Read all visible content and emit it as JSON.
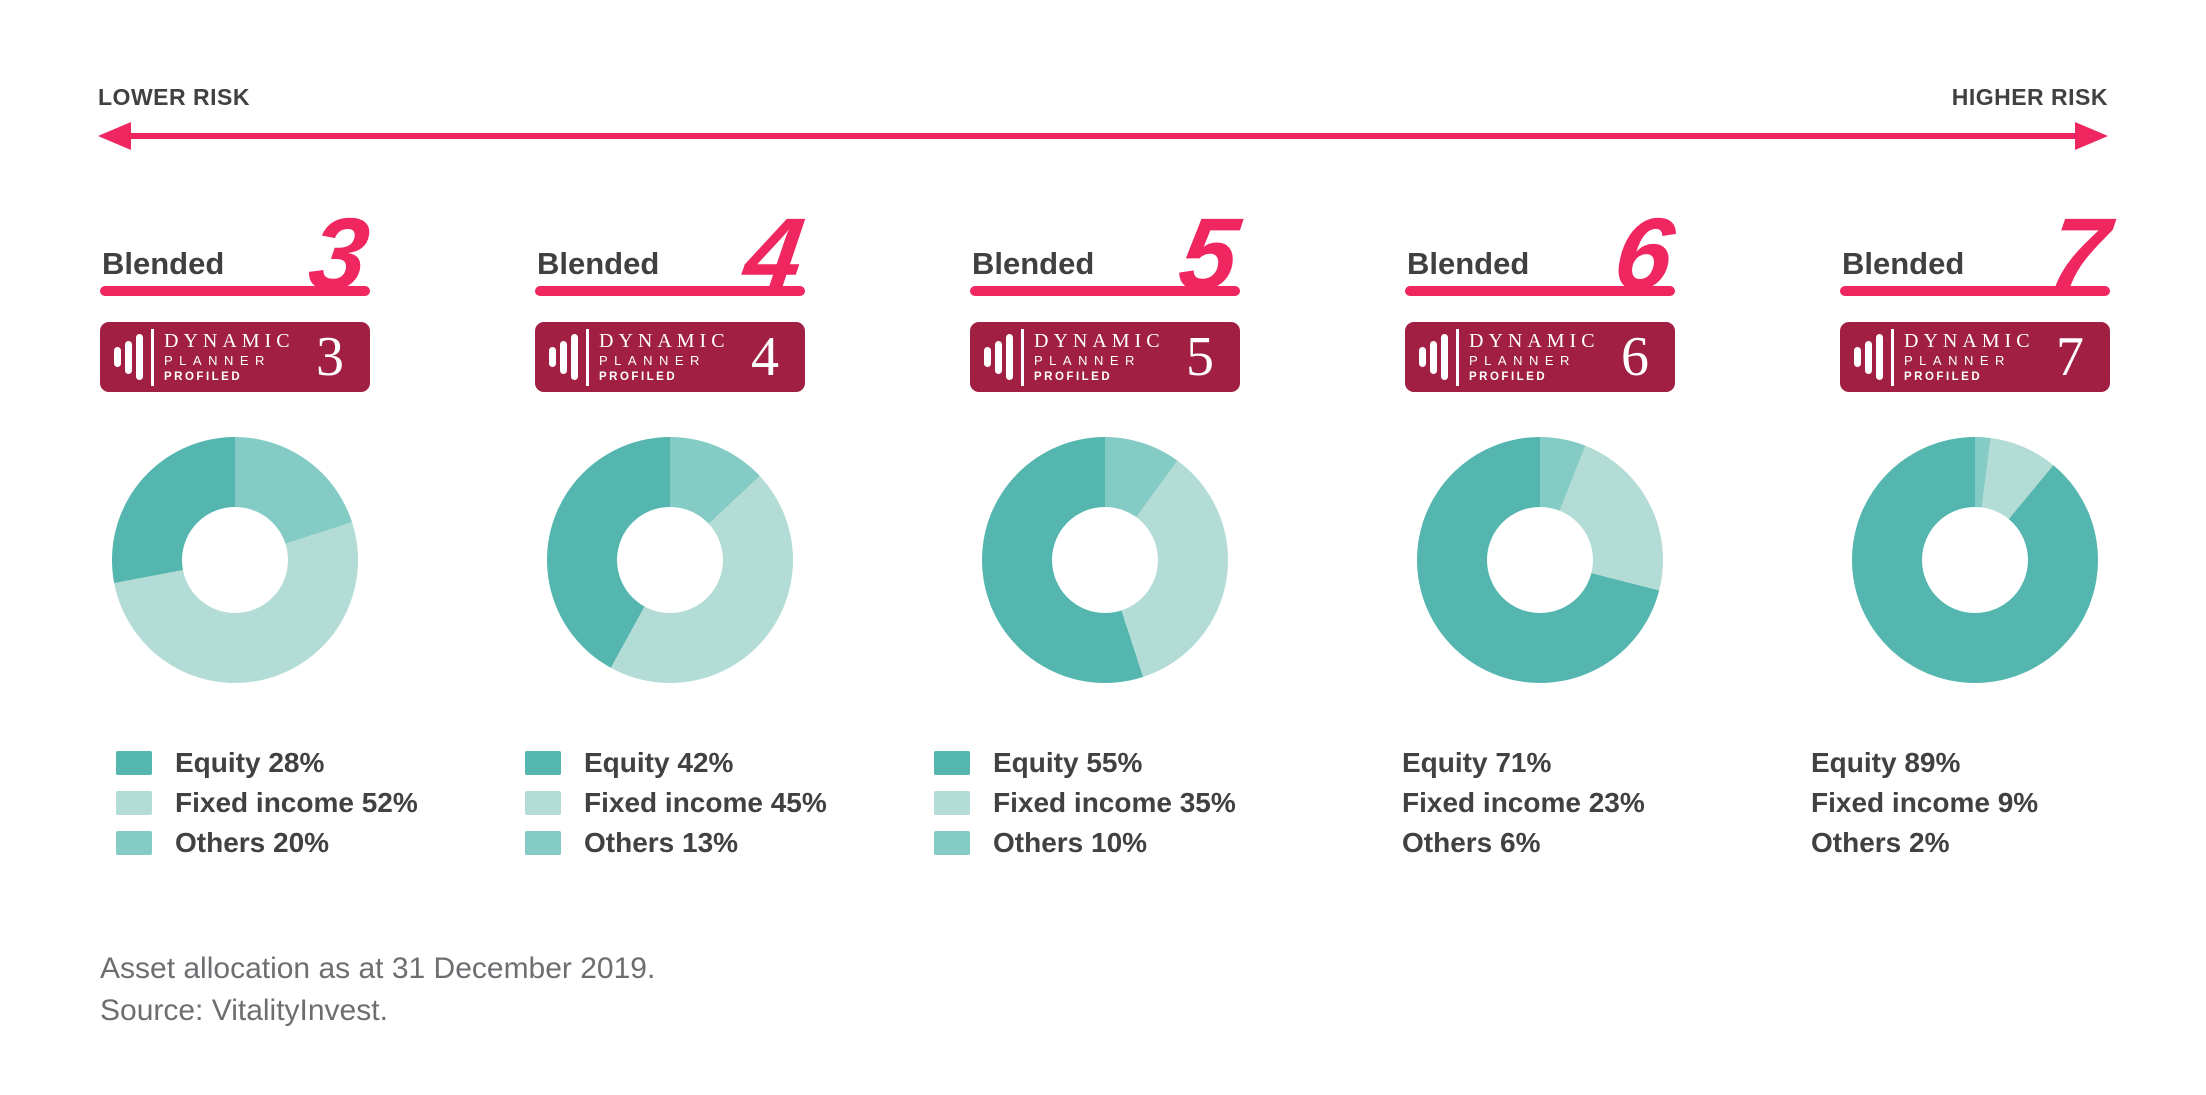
{
  "colors": {
    "pink": "#ef2660",
    "badge_red": "#a01f43",
    "equity": "#54b6af",
    "fixed_income": "#b3dcd7",
    "others": "#85cbc5"
  },
  "risk_scale": {
    "lower": "LOWER RISK",
    "higher": "HIGHER RISK"
  },
  "badge": {
    "line1": "DYNAMIC",
    "line2": "PLANNER",
    "line3": "PROFILED"
  },
  "funds": [
    {
      "name": "Blended",
      "number": "3",
      "badge_number": "3",
      "show_swatches": true,
      "allocation": {
        "equity": 28,
        "fixed_income": 52,
        "others": 20
      },
      "legend": [
        {
          "key": "equity",
          "label": "Equity 28%"
        },
        {
          "key": "fixed_income",
          "label": "Fixed income 52%"
        },
        {
          "key": "others",
          "label": "Others 20%"
        }
      ]
    },
    {
      "name": "Blended",
      "number": "4",
      "badge_number": "4",
      "show_swatches": true,
      "allocation": {
        "equity": 42,
        "fixed_income": 45,
        "others": 13
      },
      "legend": [
        {
          "key": "equity",
          "label": "Equity 42%"
        },
        {
          "key": "fixed_income",
          "label": "Fixed income 45%"
        },
        {
          "key": "others",
          "label": "Others 13%"
        }
      ]
    },
    {
      "name": "Blended",
      "number": "5",
      "badge_number": "5",
      "show_swatches": true,
      "allocation": {
        "equity": 55,
        "fixed_income": 35,
        "others": 10
      },
      "legend": [
        {
          "key": "equity",
          "label": "Equity 55%"
        },
        {
          "key": "fixed_income",
          "label": "Fixed income 35%"
        },
        {
          "key": "others",
          "label": "Others 10%"
        }
      ]
    },
    {
      "name": "Blended",
      "number": "6",
      "badge_number": "6",
      "show_swatches": false,
      "allocation": {
        "equity": 71,
        "fixed_income": 23,
        "others": 6
      },
      "legend": [
        {
          "key": "equity",
          "label": "Equity 71%"
        },
        {
          "key": "fixed_income",
          "label": "Fixed income 23%"
        },
        {
          "key": "others",
          "label": "Others 6%"
        }
      ]
    },
    {
      "name": "Blended",
      "number": "7",
      "badge_number": "7",
      "show_swatches": false,
      "allocation": {
        "equity": 89,
        "fixed_income": 9,
        "others": 2
      },
      "legend": [
        {
          "key": "equity",
          "label": "Equity 89%"
        },
        {
          "key": "fixed_income",
          "label": "Fixed income 9%"
        },
        {
          "key": "others",
          "label": "Others 2%"
        }
      ]
    }
  ],
  "footer": {
    "line1": "Asset allocation as at 31 December 2019.",
    "line2": "Source: VitalityInvest."
  },
  "chart_data": [
    {
      "type": "pie",
      "title": "Blended 3",
      "labels": [
        "Equity",
        "Fixed income",
        "Others"
      ],
      "values": [
        28,
        52,
        20
      ],
      "colors": [
        "#54b6af",
        "#b3dcd7",
        "#85cbc5"
      ],
      "donut_hole_ratio": 0.43,
      "start": "12 o'clock",
      "direction": "clockwise",
      "draw_order": [
        "Others",
        "Fixed income",
        "Equity"
      ],
      "legend_position": "below"
    },
    {
      "type": "pie",
      "title": "Blended 4",
      "labels": [
        "Equity",
        "Fixed income",
        "Others"
      ],
      "values": [
        42,
        45,
        13
      ],
      "colors": [
        "#54b6af",
        "#b3dcd7",
        "#85cbc5"
      ],
      "donut_hole_ratio": 0.43,
      "start": "12 o'clock",
      "direction": "clockwise",
      "draw_order": [
        "Others",
        "Fixed income",
        "Equity"
      ],
      "legend_position": "below"
    },
    {
      "type": "pie",
      "title": "Blended 5",
      "labels": [
        "Equity",
        "Fixed income",
        "Others"
      ],
      "values": [
        55,
        35,
        10
      ],
      "colors": [
        "#54b6af",
        "#b3dcd7",
        "#85cbc5"
      ],
      "donut_hole_ratio": 0.43,
      "start": "12 o'clock",
      "direction": "clockwise",
      "draw_order": [
        "Others",
        "Fixed income",
        "Equity"
      ],
      "legend_position": "below"
    },
    {
      "type": "pie",
      "title": "Blended 6",
      "labels": [
        "Equity",
        "Fixed income",
        "Others"
      ],
      "values": [
        71,
        23,
        6
      ],
      "colors": [
        "#54b6af",
        "#b3dcd7",
        "#85cbc5"
      ],
      "donut_hole_ratio": 0.43,
      "start": "12 o'clock",
      "direction": "clockwise",
      "draw_order": [
        "Others",
        "Fixed income",
        "Equity"
      ],
      "legend_position": "below"
    },
    {
      "type": "pie",
      "title": "Blended 7",
      "labels": [
        "Equity",
        "Fixed income",
        "Others"
      ],
      "values": [
        89,
        9,
        2
      ],
      "colors": [
        "#54b6af",
        "#b3dcd7",
        "#85cbc5"
      ],
      "donut_hole_ratio": 0.43,
      "start": "12 o'clock",
      "direction": "clockwise",
      "draw_order": [
        "Others",
        "Fixed income",
        "Equity"
      ],
      "legend_position": "below"
    }
  ]
}
